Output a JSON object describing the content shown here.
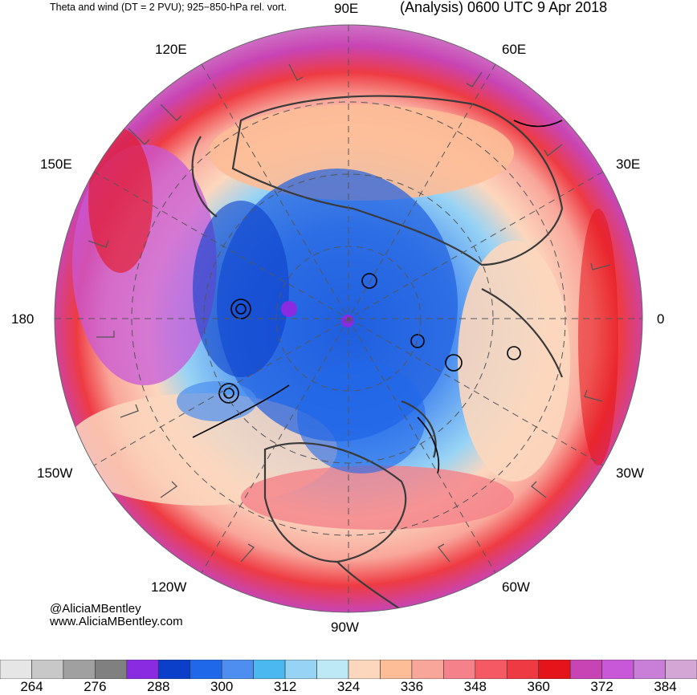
{
  "header": {
    "left_title": "Theta and wind (DT = 2 PVU); 925−850-hPa rel. vort.",
    "right_title": "(Analysis) 0600 UTC 9 Apr 2018"
  },
  "map": {
    "projection": "north-polar-stereographic",
    "longitude_labels": {
      "lon_90E": "90E",
      "lon_60E": "60E",
      "lon_30E": "30E",
      "lon_0": "0",
      "lon_30W": "30W",
      "lon_60W": "60W",
      "lon_90W": "90W",
      "lon_120W": "120W",
      "lon_150W": "150W",
      "lon_180": "180",
      "lon_150E": "150E",
      "lon_120E": "120E"
    },
    "fill_field": "theta on dynamic tropopause",
    "overlay": [
      "wind barbs",
      "925-850-hPa relative vorticity contours",
      "coastlines",
      "lat/lon grid (dashed)"
    ]
  },
  "credits": {
    "handle": "@AliciaMBentley",
    "website": "www.AliciaMBentley.com"
  },
  "colorbar": {
    "bins": [
      {
        "color": "#e6e6e6"
      },
      {
        "color": "#c8c8c8"
      },
      {
        "color": "#a0a0a0"
      },
      {
        "color": "#808080"
      },
      {
        "color": "#8a2be2"
      },
      {
        "color": "#0c3fc9"
      },
      {
        "color": "#1f68ea"
      },
      {
        "color": "#4d8ef0"
      },
      {
        "color": "#4cb8f0"
      },
      {
        "color": "#97d3f5"
      },
      {
        "color": "#bde8f5"
      },
      {
        "color": "#fcd7be"
      },
      {
        "color": "#fdbd97"
      },
      {
        "color": "#f9a69a"
      },
      {
        "color": "#f5828a"
      },
      {
        "color": "#f55963"
      },
      {
        "color": "#ee3b43"
      },
      {
        "color": "#e5141b"
      },
      {
        "color": "#c844b4"
      },
      {
        "color": "#c858d8"
      },
      {
        "color": "#c97fd8"
      },
      {
        "color": "#d3a6d6"
      }
    ],
    "tick_labels": [
      "264",
      "276",
      "288",
      "300",
      "312",
      "324",
      "336",
      "348",
      "360",
      "372",
      "384"
    ]
  }
}
